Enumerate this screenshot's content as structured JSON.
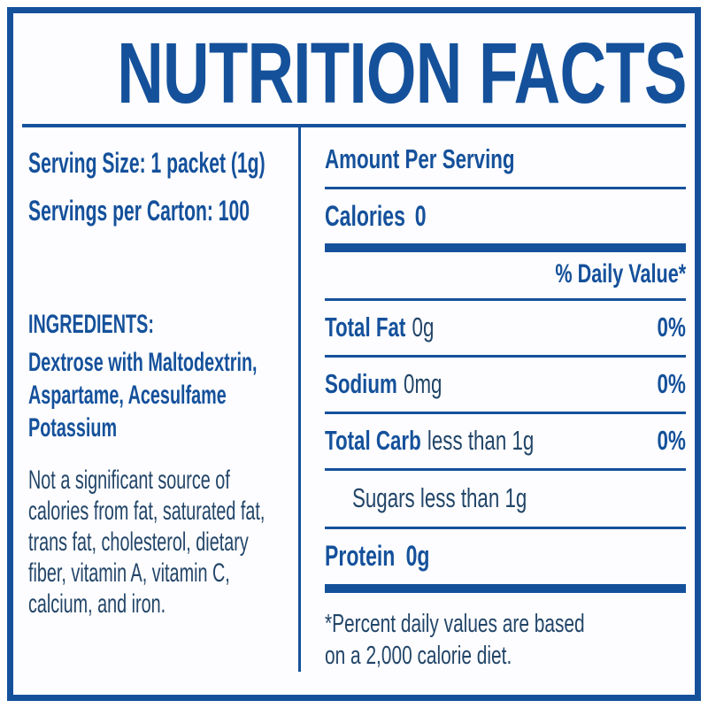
{
  "colors": {
    "accent": "#15519B",
    "text_regular": "#224568",
    "background": "#FFFFFF"
  },
  "title": "NUTRITION FACTS",
  "serving_info": {
    "serving_size": "Serving Size: 1 packet (1g)",
    "servings_per_carton": "Servings per Carton: 100"
  },
  "ingredients": {
    "heading": "INGREDIENTS:",
    "lines": [
      "Dextrose with Maltodextrin,",
      "Aspartame, Acesulfame",
      "Potassium"
    ]
  },
  "disclaimer": {
    "lines": [
      "Not a significant source of",
      "calories from fat, saturated fat,",
      "trans fat, cholesterol, dietary",
      "fiber, vitamin A, vitamin C,",
      "calcium, and iron."
    ]
  },
  "facts": {
    "amount_per_serving": "Amount Per Serving",
    "calories": {
      "label": "Calories",
      "value": "0"
    },
    "daily_value_header": "% Daily Value*",
    "rows": [
      {
        "label": "Total Fat",
        "amount": "0g",
        "daily_value": "0%"
      },
      {
        "label": "Sodium",
        "amount": "0mg",
        "daily_value": "0%"
      },
      {
        "label": "Total Carb",
        "amount": "less than 1g",
        "daily_value": "0%"
      }
    ],
    "sugars": "Sugars less than 1g",
    "protein": {
      "label": "Protein",
      "value": "0g"
    },
    "footnote_lines": [
      "*Percent daily values are based",
      "on a 2,000 calorie diet."
    ]
  }
}
